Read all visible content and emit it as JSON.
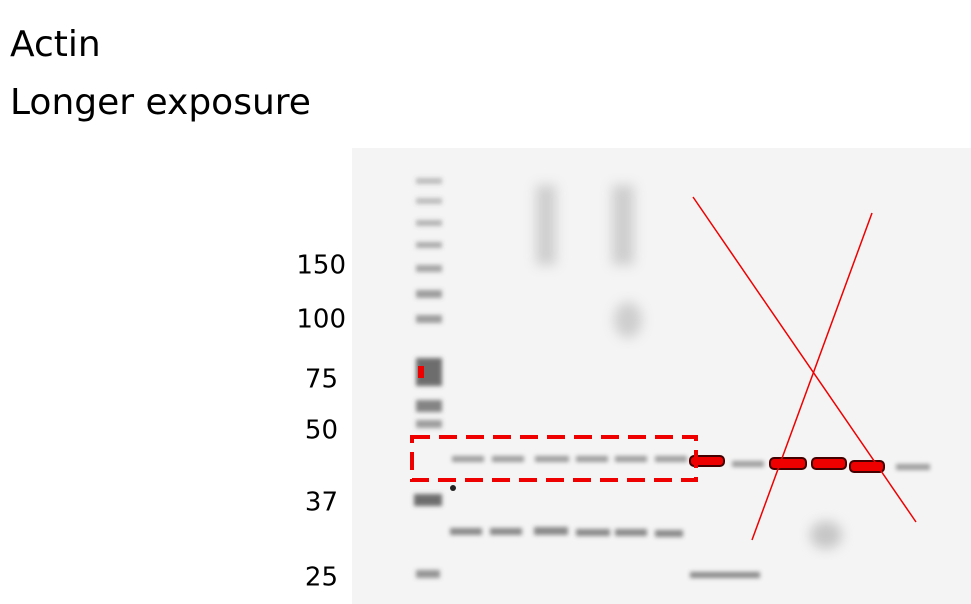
{
  "header": {
    "title": "Actin",
    "subtitle": "Longer exposure"
  },
  "markers": [
    "150",
    "100",
    "75",
    "50",
    "37",
    "25"
  ]
}
